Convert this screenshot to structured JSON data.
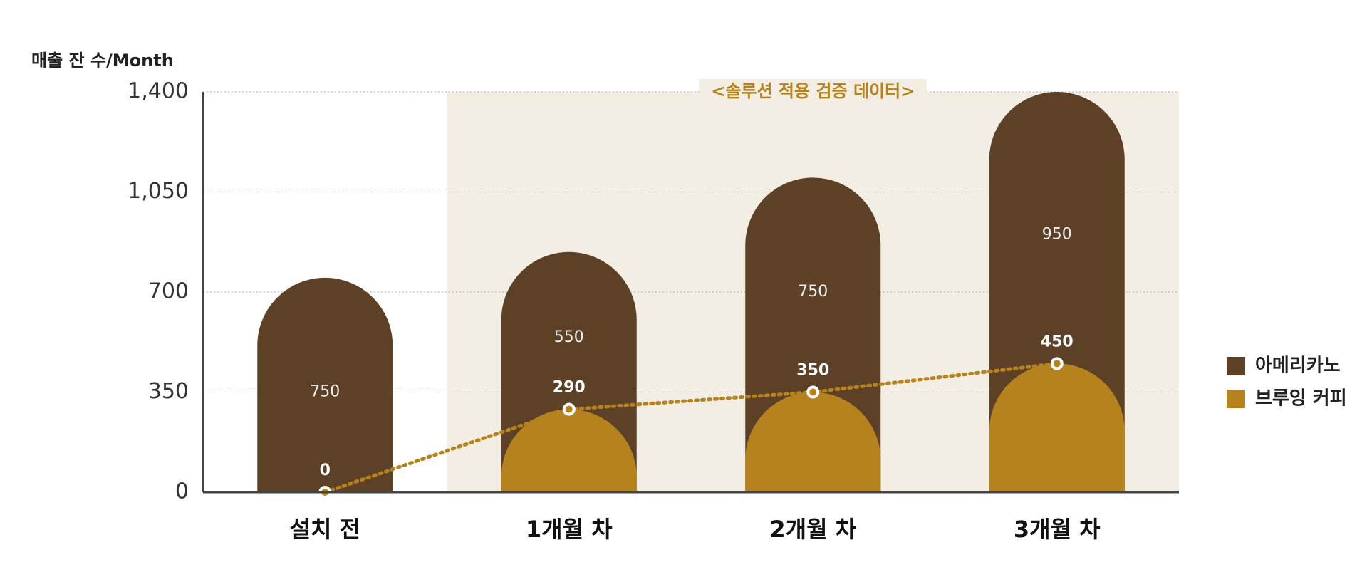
{
  "chart_data": {
    "type": "stacked-bar-line",
    "y_axis_label": "매출 잔 수/Month",
    "annotation": "<솔루션 적용 검증 데이터>",
    "categories": [
      "설치 전",
      "1개월 차",
      "2개월 차",
      "3개월 차"
    ],
    "highlight_categories": [
      1,
      3
    ],
    "series": [
      {
        "name": "아메리카노",
        "color": "#5d4127",
        "values": [
          750,
          550,
          750,
          950
        ]
      },
      {
        "name": "브루잉 커피",
        "color": "#b5821e",
        "values": [
          0,
          290,
          350,
          450
        ]
      }
    ],
    "ylim": [
      0,
      1400
    ],
    "yticks": [
      0,
      350,
      700,
      {
        "value": 1050,
        "label": "1,050"
      },
      {
        "value": 1400,
        "label": "1,400"
      }
    ],
    "grid": true,
    "legend": "right"
  }
}
